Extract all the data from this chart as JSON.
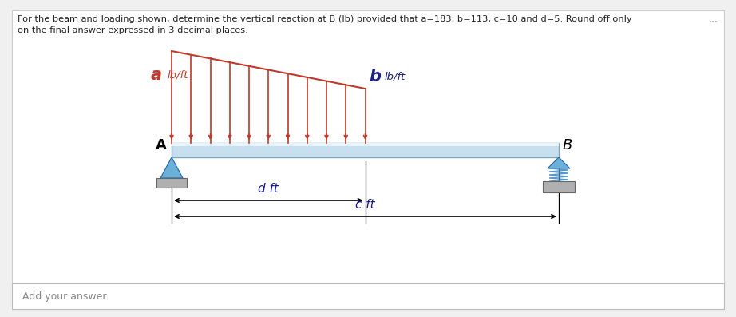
{
  "title_text": "For the beam and loading shown, determine the vertical reaction at B (lb) provided that a=183, b=113, c=10 and d=5. Round off only\non the final answer expressed in 3 decimal places.",
  "a_label": "a",
  "b_label": "b",
  "unit_label": "lb/ft",
  "d_label": "d",
  "c_label": "c",
  "ft_label": "ft",
  "A_label": "A",
  "B_label": "B",
  "add_answer": "Add your answer",
  "dots": "...",
  "text_color": "#222222",
  "label_color_a": "#c0392b",
  "label_color_b": "#1a237e",
  "load_fill_color": "#e8a0a0",
  "load_line_color": "#c0392b",
  "beam_color": "#c8dff0",
  "beam_edge_color": "#7aaabb",
  "support_triangle_color": "#5599cc",
  "support_base_color": "#aaaaaa",
  "roller_color": "#88bbdd",
  "dim_color": "#1a1a8c"
}
